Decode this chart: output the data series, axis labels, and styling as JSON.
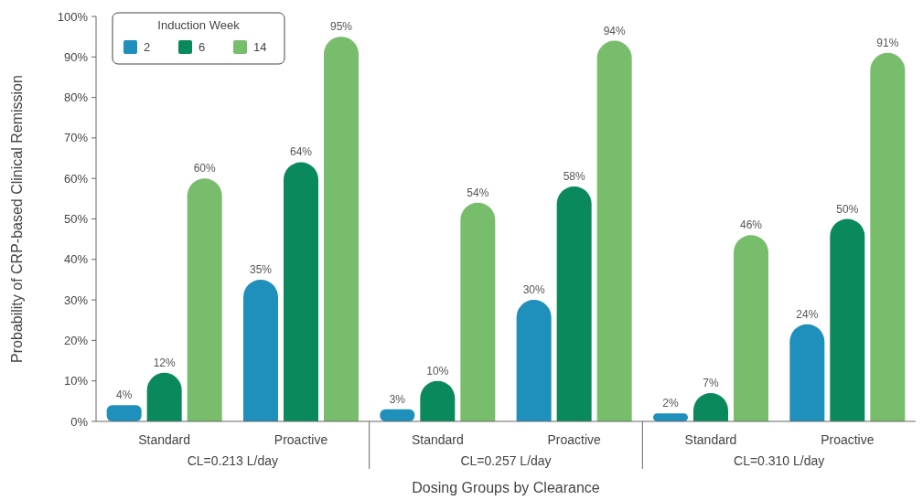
{
  "chart_data": {
    "type": "bar",
    "xlabel": "Dosing Groups by Clearance",
    "ylabel": "Probability of CRP-based Clinical Remission",
    "legend_title": "Induction Week",
    "legend": "top left",
    "categories": [
      "Standard",
      "Proactive",
      "Standard",
      "Proactive",
      "Standard",
      "Proactive"
    ],
    "annotations": [
      "CL=0.213 L/day",
      "CL=0.257 L/day",
      "CL=0.310 L/day"
    ],
    "series": [
      {
        "name": "2",
        "color": "#1f8fbb",
        "values": [
          4,
          35,
          3,
          30,
          2,
          24
        ],
        "value_labels": [
          "4%",
          "35%",
          "3%",
          "30%",
          "2%",
          "24%"
        ]
      },
      {
        "name": "6",
        "color": "#0a8a5c",
        "values": [
          12,
          64,
          10,
          58,
          7,
          50
        ],
        "value_labels": [
          "12%",
          "64%",
          "10%",
          "58%",
          "7%",
          "50%"
        ]
      },
      {
        "name": "14",
        "color": "#78bd6b",
        "values": [
          60,
          95,
          54,
          94,
          46,
          91
        ],
        "value_labels": [
          "60%",
          "95%",
          "54%",
          "94%",
          "46%",
          "91%"
        ]
      }
    ],
    "ylim": [
      0,
      100
    ],
    "yticks": [
      {
        "value": 0,
        "label": "0%"
      },
      {
        "value": 10,
        "label": "10%"
      },
      {
        "value": 20,
        "label": "20%"
      },
      {
        "value": 30,
        "label": "30%"
      },
      {
        "value": 40,
        "label": "40%"
      },
      {
        "value": 50,
        "label": "50%"
      },
      {
        "value": 60,
        "label": "60%"
      },
      {
        "value": 70,
        "label": "70%"
      },
      {
        "value": 80,
        "label": "80%"
      },
      {
        "value": 90,
        "label": "90%"
      },
      {
        "value": 100,
        "label": "100%"
      }
    ]
  }
}
